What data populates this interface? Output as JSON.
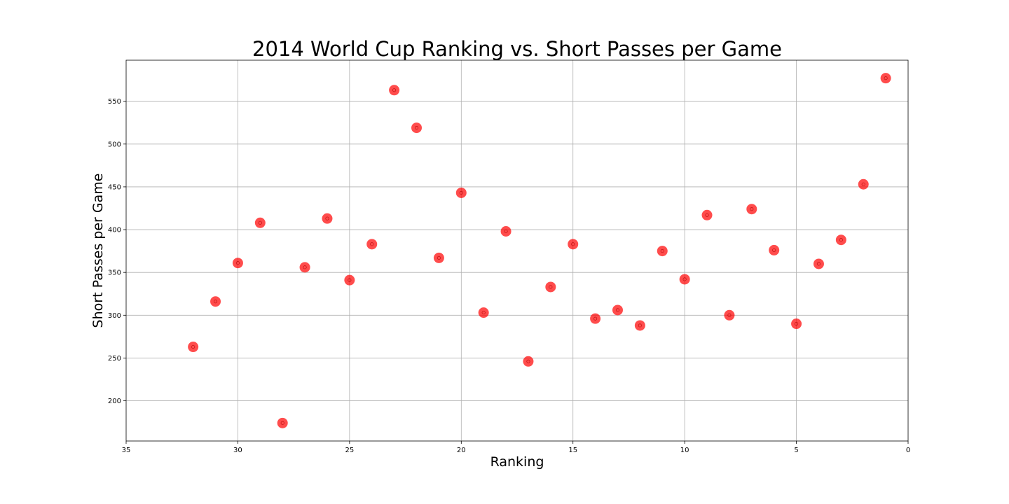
{
  "chart_data": {
    "type": "scatter",
    "title": "2014 World Cup Ranking vs. Short Passes per Game",
    "xlabel": "Ranking",
    "ylabel": "Short Passes per Game",
    "xlim": [
      35,
      0
    ],
    "ylim": [
      153,
      598
    ],
    "xticks": [
      35,
      30,
      25,
      20,
      15,
      10,
      5,
      0
    ],
    "yticks": [
      200,
      250,
      300,
      350,
      400,
      450,
      500,
      550
    ],
    "grid": true,
    "marker_color": "#ff0000",
    "marker_opacity": 0.7,
    "points": [
      {
        "x": 32,
        "y": 263
      },
      {
        "x": 31,
        "y": 316
      },
      {
        "x": 30,
        "y": 361
      },
      {
        "x": 29,
        "y": 408
      },
      {
        "x": 28,
        "y": 174
      },
      {
        "x": 27,
        "y": 356
      },
      {
        "x": 26,
        "y": 413
      },
      {
        "x": 25,
        "y": 341
      },
      {
        "x": 24,
        "y": 383
      },
      {
        "x": 23,
        "y": 563
      },
      {
        "x": 22,
        "y": 519
      },
      {
        "x": 21,
        "y": 367
      },
      {
        "x": 20,
        "y": 443
      },
      {
        "x": 19,
        "y": 303
      },
      {
        "x": 18,
        "y": 398
      },
      {
        "x": 17,
        "y": 246
      },
      {
        "x": 16,
        "y": 333
      },
      {
        "x": 15,
        "y": 383
      },
      {
        "x": 14,
        "y": 296
      },
      {
        "x": 13,
        "y": 306
      },
      {
        "x": 12,
        "y": 288
      },
      {
        "x": 11,
        "y": 375
      },
      {
        "x": 10,
        "y": 342
      },
      {
        "x": 9,
        "y": 417
      },
      {
        "x": 8,
        "y": 300
      },
      {
        "x": 7,
        "y": 424
      },
      {
        "x": 6,
        "y": 376
      },
      {
        "x": 5,
        "y": 290
      },
      {
        "x": 4,
        "y": 360
      },
      {
        "x": 3,
        "y": 388
      },
      {
        "x": 2,
        "y": 453
      },
      {
        "x": 1,
        "y": 577
      }
    ]
  }
}
